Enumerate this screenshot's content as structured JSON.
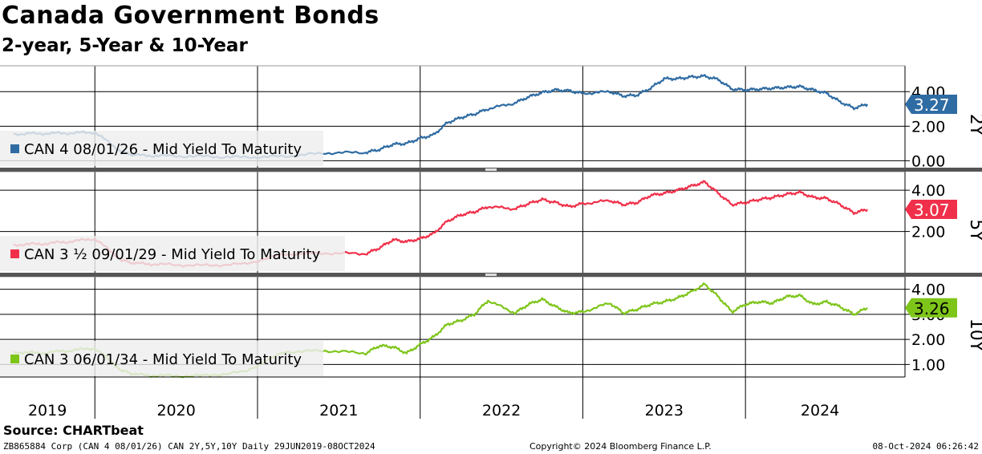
{
  "header": {
    "title": "Canada Government Bonds",
    "subtitle": "2-year, 5-Year & 10-Year"
  },
  "footer": {
    "source": "Source:  CHARTbeat",
    "ticker": "ZB865884 Corp (CAN 4 08/01/26) CAN 2Y,5Y,10Y  Daily 29JUN2019-08OCT2024",
    "copyright": "Copyright© 2024 Bloomberg Finance L.P.",
    "timestamp": "08-Oct-2024 06:26:42"
  },
  "colors": {
    "two_year": "#2f6ca3",
    "five_year": "#f0304a",
    "ten_year": "#7ec51a",
    "grid": "#000000",
    "legend_bg": "#eeeeee",
    "separator": "#555555"
  },
  "chart_data": [
    {
      "type": "line",
      "panel_label": "2Y",
      "series": [
        {
          "name": "CAN 4 08/01/26 - Mid Yield To Maturity",
          "last_value_label": "3.27",
          "x": [
            "2019-07",
            "2019-09",
            "2019-11",
            "2020-01",
            "2020-03",
            "2020-04",
            "2020-06",
            "2020-09",
            "2020-12",
            "2021-03",
            "2021-06",
            "2021-09",
            "2021-10",
            "2021-11",
            "2021-12",
            "2022-01",
            "2022-02",
            "2022-03",
            "2022-04",
            "2022-05",
            "2022-06",
            "2022-08",
            "2022-09",
            "2022-10",
            "2022-11",
            "2022-12",
            "2023-01",
            "2023-03",
            "2023-04",
            "2023-05",
            "2023-06",
            "2023-07",
            "2023-08",
            "2023-09",
            "2023-10",
            "2023-11",
            "2023-12",
            "2024-01",
            "2024-02",
            "2024-03",
            "2024-04",
            "2024-05",
            "2024-06",
            "2024-07",
            "2024-08",
            "2024-09",
            "2024-10"
          ],
          "values": [
            1.55,
            1.58,
            1.6,
            1.65,
            0.5,
            0.32,
            0.28,
            0.25,
            0.2,
            0.25,
            0.45,
            0.48,
            0.65,
            0.95,
            1.0,
            1.3,
            1.5,
            2.2,
            2.5,
            2.7,
            3.0,
            3.35,
            3.7,
            3.95,
            4.1,
            4.05,
            3.9,
            4.0,
            3.75,
            3.8,
            4.2,
            4.75,
            4.75,
            4.85,
            4.9,
            4.7,
            4.15,
            4.1,
            4.15,
            4.2,
            4.25,
            4.3,
            4.1,
            3.9,
            3.4,
            3.05,
            3.27
          ]
        }
      ],
      "y_ticks": [
        "4.00",
        "2.00",
        "0.00"
      ],
      "ylim": [
        -0.4,
        5.5
      ]
    },
    {
      "type": "line",
      "panel_label": "5Y",
      "series": [
        {
          "name": "CAN 3 ½  09/01/29 - Mid Yield To Maturity",
          "last_value_label": "3.07",
          "x": [
            "2019-07",
            "2019-09",
            "2019-11",
            "2020-01",
            "2020-03",
            "2020-04",
            "2020-06",
            "2020-09",
            "2020-12",
            "2021-03",
            "2021-06",
            "2021-09",
            "2021-10",
            "2021-11",
            "2021-12",
            "2022-01",
            "2022-02",
            "2022-03",
            "2022-04",
            "2022-05",
            "2022-06",
            "2022-08",
            "2022-09",
            "2022-10",
            "2022-11",
            "2022-12",
            "2023-01",
            "2023-03",
            "2023-04",
            "2023-05",
            "2023-06",
            "2023-07",
            "2023-08",
            "2023-09",
            "2023-10",
            "2023-11",
            "2023-12",
            "2024-01",
            "2024-02",
            "2024-03",
            "2024-04",
            "2024-05",
            "2024-06",
            "2024-07",
            "2024-08",
            "2024-09",
            "2024-10"
          ],
          "values": [
            1.35,
            1.4,
            1.5,
            1.65,
            0.6,
            0.45,
            0.4,
            0.35,
            0.42,
            0.9,
            0.95,
            0.92,
            1.2,
            1.6,
            1.5,
            1.65,
            1.9,
            2.5,
            2.8,
            2.95,
            3.2,
            3.1,
            3.35,
            3.55,
            3.4,
            3.2,
            3.35,
            3.5,
            3.3,
            3.4,
            3.75,
            3.85,
            4.0,
            4.2,
            4.4,
            3.85,
            3.3,
            3.4,
            3.55,
            3.65,
            3.8,
            3.9,
            3.65,
            3.6,
            3.3,
            2.9,
            3.07
          ]
        }
      ],
      "y_ticks": [
        "4.00",
        "2.00"
      ],
      "ylim": [
        0.0,
        4.9
      ]
    },
    {
      "type": "line",
      "panel_label": "10Y",
      "series": [
        {
          "name": "CAN 3 06/01/34 - Mid Yield To Maturity",
          "last_value_label": "3.26",
          "x": [
            "2019-07",
            "2019-09",
            "2019-11",
            "2020-01",
            "2020-03",
            "2020-04",
            "2020-06",
            "2020-09",
            "2020-12",
            "2021-03",
            "2021-06",
            "2021-09",
            "2021-10",
            "2021-11",
            "2021-12",
            "2022-01",
            "2022-02",
            "2022-03",
            "2022-04",
            "2022-05",
            "2022-06",
            "2022-08",
            "2022-09",
            "2022-10",
            "2022-11",
            "2022-12",
            "2023-01",
            "2023-03",
            "2023-04",
            "2023-05",
            "2023-06",
            "2023-07",
            "2023-08",
            "2023-09",
            "2023-10",
            "2023-11",
            "2023-12",
            "2024-01",
            "2024-02",
            "2024-03",
            "2024-04",
            "2024-05",
            "2024-06",
            "2024-07",
            "2024-08",
            "2024-09",
            "2024-10"
          ],
          "values": [
            1.5,
            1.45,
            1.55,
            1.65,
            0.75,
            0.6,
            0.55,
            0.55,
            0.7,
            1.5,
            1.55,
            1.45,
            1.75,
            1.7,
            1.45,
            1.8,
            2.1,
            2.6,
            2.75,
            3.0,
            3.55,
            3.05,
            3.4,
            3.6,
            3.3,
            3.05,
            3.1,
            3.45,
            3.05,
            3.2,
            3.4,
            3.5,
            3.65,
            3.9,
            4.2,
            3.7,
            3.1,
            3.4,
            3.5,
            3.45,
            3.7,
            3.75,
            3.4,
            3.5,
            3.3,
            3.0,
            3.26
          ]
        }
      ],
      "y_ticks": [
        "4.00",
        "3.00",
        "2.00",
        "1.00"
      ],
      "ylim": [
        0.5,
        4.5
      ]
    }
  ],
  "x_axis": {
    "year_labels": [
      "2019",
      "2020",
      "2021",
      "2022",
      "2023",
      "2024"
    ],
    "range": [
      "2019-06",
      "2024-12"
    ]
  }
}
